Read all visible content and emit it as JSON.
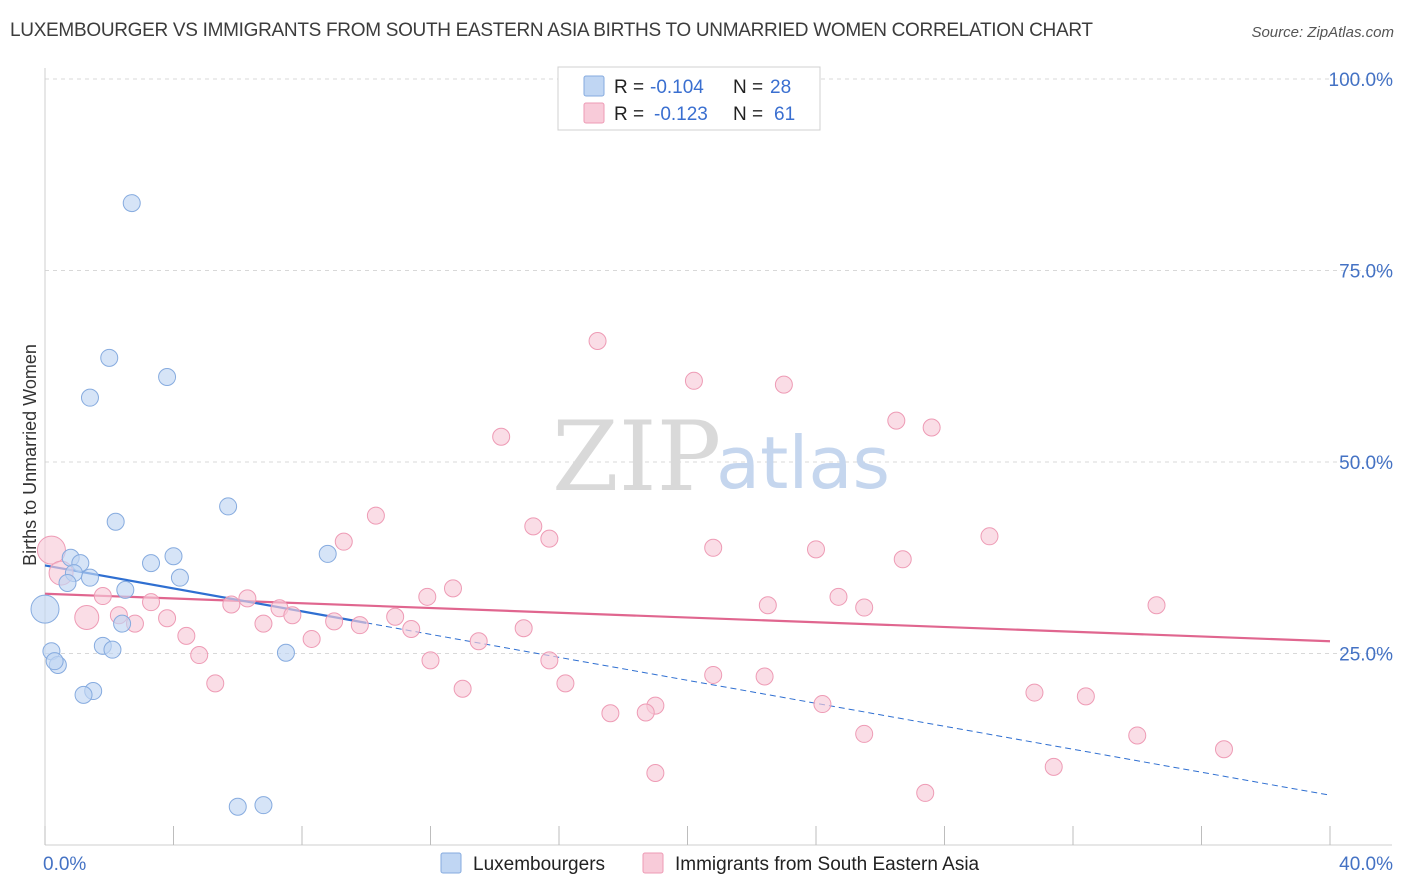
{
  "title": "LUXEMBOURGER VS IMMIGRANTS FROM SOUTH EASTERN ASIA BIRTHS TO UNMARRIED WOMEN CORRELATION CHART",
  "source": "Source: ZipAtlas.com",
  "watermark": {
    "zip": "ZIP",
    "atlas": "atlas"
  },
  "colors": {
    "blue_fill": "#c0d6f3",
    "blue_stroke": "#86abdf",
    "blue_line": "#2f6fd1",
    "pink_fill": "#f8cbd9",
    "pink_stroke": "#ee9bb5",
    "pink_line": "#e0668f",
    "grid": "#d8d8d8",
    "axis_text": "#4472c4"
  },
  "legend": {
    "rows": [
      {
        "r_label": "R =",
        "r_value": "-0.104",
        "n_label": "N =",
        "n_value": "28",
        "color": "blue"
      },
      {
        "r_label": "R =",
        "r_value": "-0.123",
        "n_label": "N =",
        "n_value": "61",
        "color": "pink"
      }
    ]
  },
  "chart_data": {
    "type": "scatter",
    "title": "LUXEMBOURGER VS IMMIGRANTS FROM SOUTH EASTERN ASIA BIRTHS TO UNMARRIED WOMEN CORRELATION CHART",
    "xlabel": "",
    "ylabel": "Births to Unmarried Women",
    "xlim": [
      0,
      40
    ],
    "ylim": [
      0,
      100
    ],
    "x_tick_labels": [
      "0.0%",
      "40.0%"
    ],
    "y_ticks": [
      25,
      50,
      75,
      100
    ],
    "y_tick_labels": [
      "25.0%",
      "50.0%",
      "75.0%",
      "100.0%"
    ],
    "grid": true,
    "legend_position": "top-center",
    "series": [
      {
        "name": "Luxembourgers",
        "color": "blue",
        "r": -0.104,
        "n": 28,
        "trend": {
          "x": [
            0,
            10
          ],
          "y": [
            36.5,
            29.0
          ],
          "dashed_extension_to": [
            40,
            6.5
          ]
        },
        "points": [
          [
            2.7,
            83.8
          ],
          [
            2.0,
            63.6
          ],
          [
            3.8,
            61.1
          ],
          [
            1.4,
            58.4
          ],
          [
            5.7,
            44.2
          ],
          [
            2.2,
            42.2
          ],
          [
            8.8,
            38.0
          ],
          [
            4.0,
            37.7
          ],
          [
            0.8,
            37.5
          ],
          [
            3.3,
            36.8
          ],
          [
            1.1,
            36.8
          ],
          [
            0.9,
            35.5
          ],
          [
            1.4,
            34.9
          ],
          [
            4.2,
            34.9
          ],
          [
            0.7,
            34.2
          ],
          [
            2.5,
            33.3
          ],
          [
            0.0,
            30.8
          ],
          [
            2.4,
            28.9
          ],
          [
            1.8,
            26.0
          ],
          [
            2.1,
            25.5
          ],
          [
            7.5,
            25.1
          ],
          [
            0.2,
            25.3
          ],
          [
            0.4,
            23.5
          ],
          [
            0.3,
            24.0
          ],
          [
            1.5,
            20.1
          ],
          [
            1.2,
            19.6
          ],
          [
            6.0,
            5.0
          ],
          [
            6.8,
            5.2
          ]
        ]
      },
      {
        "name": "Immigrants from South Eastern Asia",
        "color": "pink",
        "r": -0.123,
        "n": 61,
        "trend": {
          "x": [
            0,
            40
          ],
          "y": [
            32.8,
            26.6
          ]
        },
        "points": [
          [
            17.2,
            65.8
          ],
          [
            20.2,
            60.6
          ],
          [
            23.0,
            60.1
          ],
          [
            26.5,
            55.4
          ],
          [
            27.6,
            54.5
          ],
          [
            14.2,
            53.3
          ],
          [
            10.3,
            43.0
          ],
          [
            15.2,
            41.6
          ],
          [
            15.7,
            40.0
          ],
          [
            29.4,
            40.3
          ],
          [
            9.3,
            39.6
          ],
          [
            0.2,
            38.5
          ],
          [
            20.8,
            38.8
          ],
          [
            24.0,
            38.6
          ],
          [
            26.7,
            37.3
          ],
          [
            0.5,
            35.5
          ],
          [
            12.7,
            33.5
          ],
          [
            1.8,
            32.5
          ],
          [
            11.9,
            32.4
          ],
          [
            24.7,
            32.4
          ],
          [
            6.3,
            32.2
          ],
          [
            3.3,
            31.7
          ],
          [
            5.8,
            31.4
          ],
          [
            22.5,
            31.3
          ],
          [
            25.5,
            31.0
          ],
          [
            34.6,
            31.3
          ],
          [
            7.3,
            30.9
          ],
          [
            2.3,
            30.0
          ],
          [
            1.3,
            29.7
          ],
          [
            7.7,
            30.0
          ],
          [
            3.8,
            29.6
          ],
          [
            10.9,
            29.8
          ],
          [
            9.0,
            29.2
          ],
          [
            6.8,
            28.9
          ],
          [
            2.8,
            28.9
          ],
          [
            9.8,
            28.7
          ],
          [
            11.4,
            28.2
          ],
          [
            14.9,
            28.3
          ],
          [
            4.4,
            27.3
          ],
          [
            8.3,
            26.9
          ],
          [
            13.5,
            26.6
          ],
          [
            4.8,
            24.8
          ],
          [
            12.0,
            24.1
          ],
          [
            15.7,
            24.1
          ],
          [
            20.8,
            22.2
          ],
          [
            22.4,
            22.0
          ],
          [
            5.3,
            21.1
          ],
          [
            16.2,
            21.1
          ],
          [
            13.0,
            20.4
          ],
          [
            30.8,
            19.9
          ],
          [
            32.4,
            19.4
          ],
          [
            24.2,
            18.4
          ],
          [
            19.0,
            18.2
          ],
          [
            17.6,
            17.2
          ],
          [
            18.7,
            17.3
          ],
          [
            25.5,
            14.5
          ],
          [
            34.0,
            14.3
          ],
          [
            36.7,
            12.5
          ],
          [
            31.4,
            10.2
          ],
          [
            19.0,
            9.4
          ],
          [
            27.4,
            6.8
          ]
        ]
      }
    ]
  }
}
